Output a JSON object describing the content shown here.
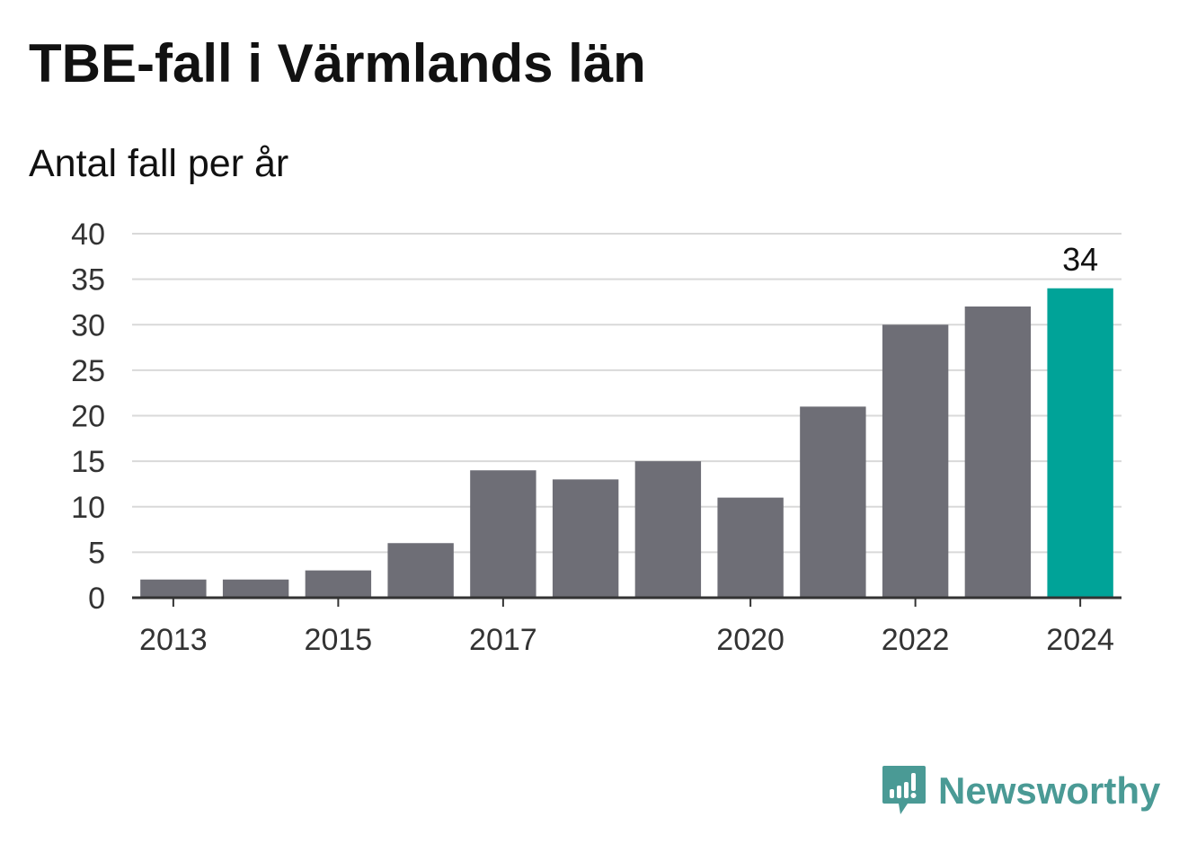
{
  "title": "TBE-fall i Värmlands län",
  "subtitle": "Antal fall per år",
  "brand": {
    "name": "Newsworthy",
    "icon": "newsworthy-logo-icon",
    "color": "#4a9a95"
  },
  "colors": {
    "bar": "#6e6e76",
    "highlight": "#00a398",
    "grid": "#d9d9d9",
    "axis": "#333333"
  },
  "chart_data": {
    "type": "bar",
    "title": "TBE-fall i Värmlands län",
    "subtitle": "Antal fall per år",
    "categories": [
      "2013",
      "2014",
      "2015",
      "2016",
      "2017",
      "2018",
      "2019",
      "2020",
      "2021",
      "2022",
      "2023",
      "2024"
    ],
    "values": [
      2,
      2,
      3,
      6,
      14,
      13,
      15,
      11,
      21,
      30,
      32,
      34
    ],
    "x_tick_labels": [
      "2013",
      "2015",
      "2017",
      "2020",
      "2022",
      "2024"
    ],
    "y_ticks": [
      "0",
      "5",
      "10",
      "15",
      "20",
      "25",
      "30",
      "35",
      "40"
    ],
    "ylim": [
      0,
      40
    ],
    "grid": true,
    "legend": "none",
    "highlight_category": "2024",
    "data_labels": [
      {
        "category": "2024",
        "text": "34"
      }
    ]
  }
}
